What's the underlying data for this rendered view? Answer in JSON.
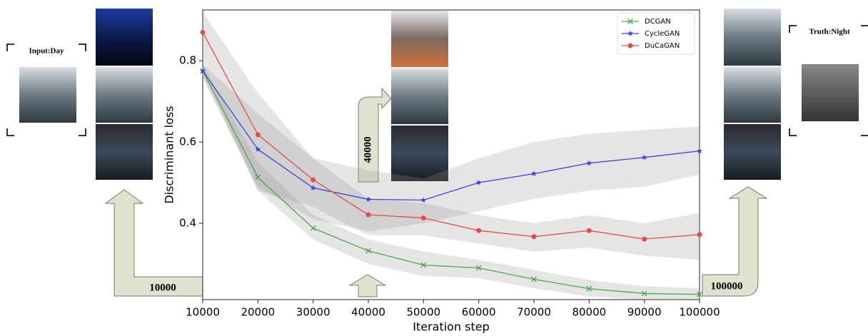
{
  "chart_data": {
    "type": "line",
    "x_label": "Iteration step",
    "y_label": "Discriminant loss",
    "x": [
      10000,
      20000,
      30000,
      40000,
      50000,
      60000,
      70000,
      80000,
      90000,
      100000
    ],
    "xlim": [
      10000,
      100000
    ],
    "xticks": [
      10000,
      20000,
      30000,
      40000,
      50000,
      60000,
      70000,
      80000,
      90000,
      100000
    ],
    "ylim": [
      0.212,
      0.925
    ],
    "yticks": [
      0.4,
      0.6,
      0.8
    ],
    "legend": "upper right",
    "series": [
      {
        "name": "DCGAN",
        "color": "#4ca64c",
        "marker": "x",
        "values": [
          0.775,
          0.513,
          0.388,
          0.332,
          0.297,
          0.29,
          0.262,
          0.239,
          0.227,
          0.225
        ],
        "lower": [
          0.76,
          0.48,
          0.36,
          0.3,
          0.27,
          0.265,
          0.24,
          0.22,
          0.212,
          0.212
        ],
        "upper": [
          0.79,
          0.55,
          0.42,
          0.36,
          0.33,
          0.31,
          0.285,
          0.26,
          0.245,
          0.24
        ]
      },
      {
        "name": "CycleGAN",
        "color": "#3f3fe0",
        "marker": "star",
        "values": [
          0.775,
          0.582,
          0.487,
          0.459,
          0.457,
          0.5,
          0.522,
          0.548,
          0.562,
          0.578
        ],
        "lower": [
          0.76,
          0.49,
          0.41,
          0.38,
          0.4,
          0.43,
          0.46,
          0.48,
          0.49,
          0.52
        ],
        "upper": [
          0.79,
          0.67,
          0.56,
          0.53,
          0.51,
          0.56,
          0.6,
          0.62,
          0.63,
          0.638
        ]
      },
      {
        "name": "DuCaGAN",
        "color": "#e84a4a",
        "marker": "circle",
        "values": [
          0.87,
          0.618,
          0.507,
          0.421,
          0.413,
          0.382,
          0.367,
          0.382,
          0.361,
          0.372
        ],
        "lower": [
          0.78,
          0.48,
          0.44,
          0.37,
          0.37,
          0.35,
          0.33,
          0.34,
          0.32,
          0.31
        ],
        "upper": [
          0.92,
          0.72,
          0.56,
          0.46,
          0.45,
          0.42,
          0.4,
          0.42,
          0.4,
          0.425
        ]
      }
    ]
  },
  "annotations": {
    "input": "Input:Day",
    "truth": "Truth:Night",
    "step1": "10000",
    "step2": "40000",
    "step3": "100000"
  }
}
